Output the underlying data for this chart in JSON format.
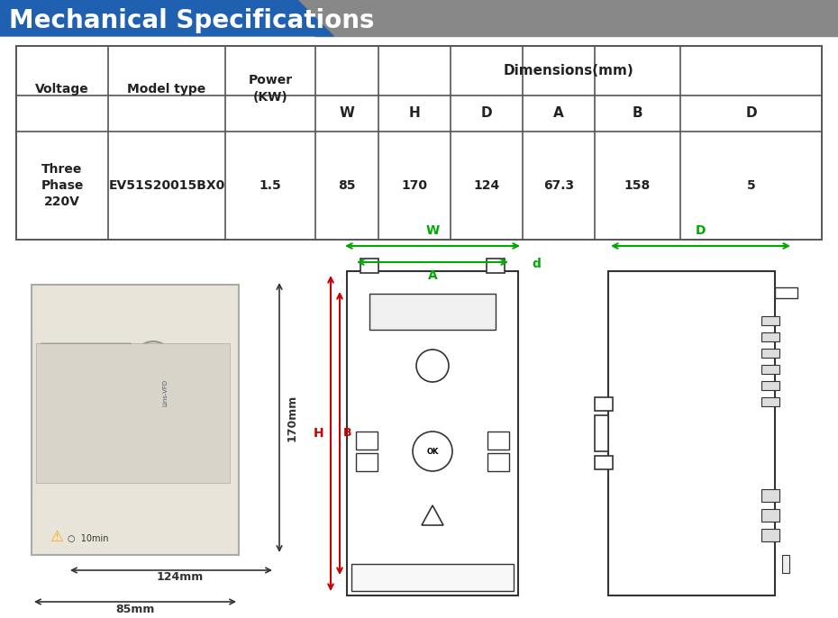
{
  "title": "Mechanical Specifications",
  "title_bg_color": "#2060b0",
  "title_shadow_color": "#888888",
  "title_text_color": "#ffffff",
  "bg_color": "#ffffff",
  "outer_bg_color": "#f5f5f5",
  "table_headers_row1": [
    "Voltage",
    "Model type",
    "Power\n(KW)",
    "Dimensions(mm)"
  ],
  "table_headers_row2": [
    "",
    "",
    "",
    "W",
    "H",
    "D",
    "A",
    "B",
    "D"
  ],
  "table_data": [
    "Three\nPhase\n220V",
    "EV51S20015BX0",
    "1.5",
    "85",
    "170",
    "124",
    "67.3",
    "158",
    "5"
  ],
  "dim_label_85mm": "85mm",
  "dim_label_124mm": "124mm",
  "dim_label_170mm": "170mm",
  "dim_W": "W",
  "dim_H": "H",
  "dim_A": "A",
  "dim_B": "B",
  "dim_d": "d",
  "dim_D_side": "D",
  "arrow_color_red": "#cc0000",
  "arrow_color_green": "#00aa00",
  "dim_text_color_green": "#00aa00",
  "dim_text_color_red": "#cc0000",
  "dim_text_color_black": "#333333"
}
